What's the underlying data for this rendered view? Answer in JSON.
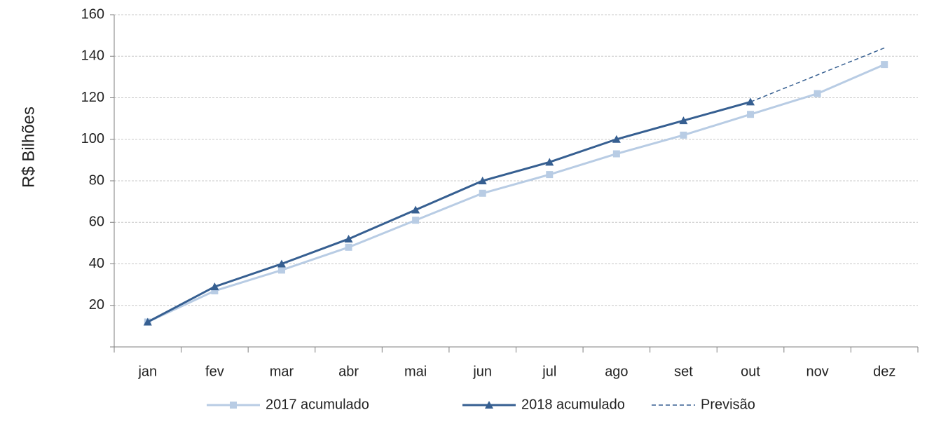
{
  "chart_data": {
    "type": "line",
    "y_label": "R$ Bilhões",
    "categories": [
      "jan",
      "fev",
      "mar",
      "abr",
      "mai",
      "jun",
      "jul",
      "ago",
      "set",
      "out",
      "nov",
      "dez"
    ],
    "series": [
      {
        "name": "2017 acumulado",
        "color": "#b8cce4",
        "marker": "square",
        "values": [
          12,
          27,
          37,
          48,
          61,
          74,
          83,
          93,
          102,
          112,
          122,
          136
        ]
      },
      {
        "name": "2018 acumulado",
        "color": "#365f91",
        "marker": "triangle",
        "values": [
          12,
          29,
          40,
          52,
          66,
          80,
          89,
          100,
          109,
          118,
          null,
          null
        ]
      },
      {
        "name": "Previsão",
        "color": "#365f91",
        "dashed": true,
        "values": [
          null,
          null,
          null,
          null,
          null,
          null,
          null,
          null,
          null,
          118,
          131,
          144
        ]
      }
    ],
    "ylim": [
      0,
      160
    ],
    "yticks": [
      20,
      40,
      60,
      80,
      100,
      120,
      140,
      160
    ],
    "grid": true,
    "legend": "bottom"
  }
}
